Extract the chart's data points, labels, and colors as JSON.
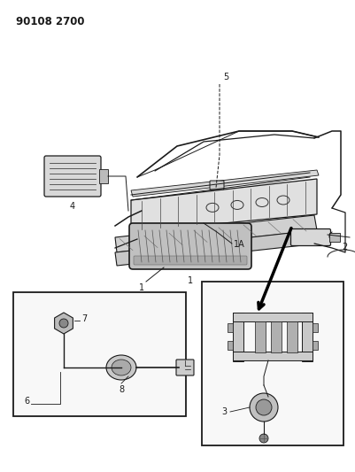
{
  "title_code": "90108 2700",
  "bg_color": "#ffffff",
  "fg_color": "#1a1a1a",
  "fig_width": 4.01,
  "fig_height": 5.33,
  "dpi": 100
}
